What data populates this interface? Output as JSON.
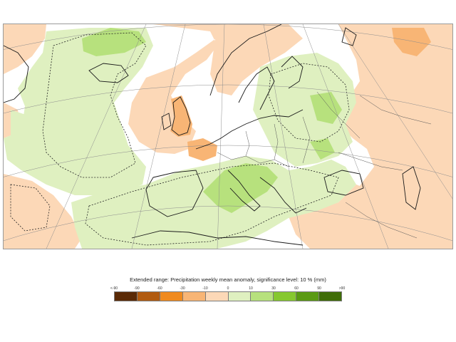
{
  "legend": {
    "title": "Extended range: Precipitation weekly mean anomaly, significance level: 10 % (mm)",
    "ticks": [
      "<-90",
      "-90",
      "-60",
      "-30",
      "-10",
      "0",
      "10",
      "30",
      "60",
      "90",
      ">90"
    ],
    "colors": [
      "#5a2a06",
      "#b15b10",
      "#f08a1e",
      "#f8b575",
      "#fcd8b7",
      "#dff0c0",
      "#b7e17d",
      "#86c82f",
      "#5a9a13",
      "#3f6d08"
    ]
  },
  "map": {
    "background": "#ffffff",
    "dry_fill": "#fcd8b7",
    "dry_strong_fill": "#f8b575",
    "wet_fill": "#dff0c0",
    "wet_strong_fill": "#b7e17d",
    "coast_color": "#1a1a1a",
    "border_color": "#555555",
    "grid_color": "#8d8d8d",
    "significance_contour_color": "#222222"
  }
}
